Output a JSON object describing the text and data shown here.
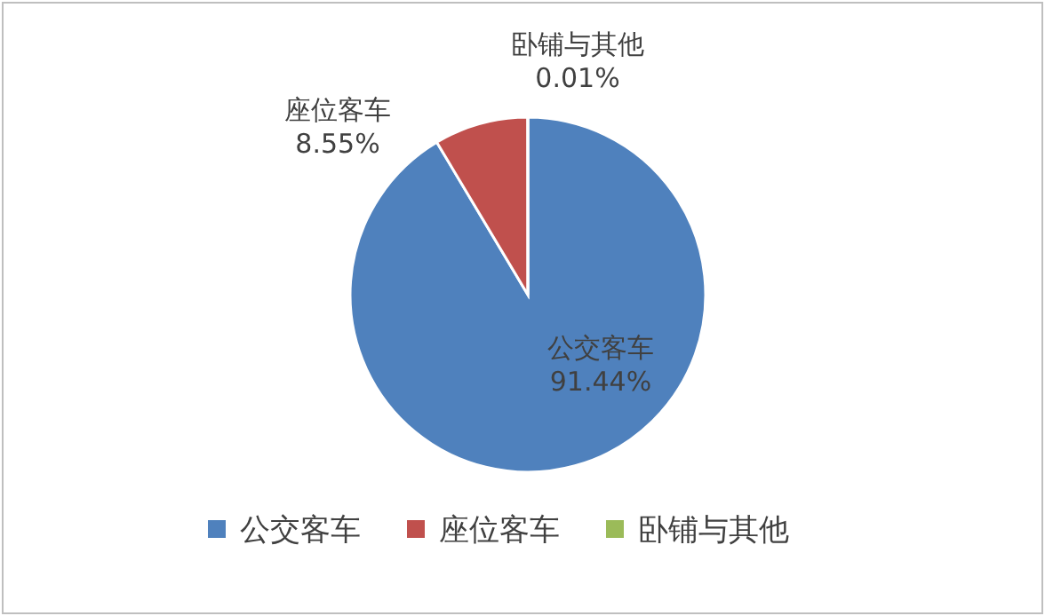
{
  "chart_data": {
    "type": "pie",
    "categories": [
      "公交客车",
      "座位客车",
      "卧铺与其他"
    ],
    "values": [
      91.44,
      8.55,
      0.01
    ],
    "colors": [
      "#4f81bd",
      "#c0504d",
      "#9bbb59"
    ],
    "value_labels": [
      "91.44%",
      "8.55%",
      "0.01%"
    ],
    "legend": "bottom"
  }
}
